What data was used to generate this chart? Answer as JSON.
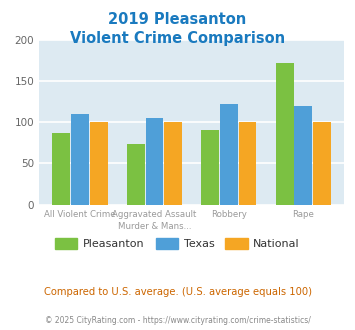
{
  "title_line1": "2019 Pleasanton",
  "title_line2": "Violent Crime Comparison",
  "title_color": "#1a7abf",
  "cat_labels_top": [
    "All Violent Crime",
    "Aggravated Assault",
    "Robbery",
    "Rape"
  ],
  "cat_labels_bot": [
    "",
    "Murder & Mans...",
    "",
    ""
  ],
  "pleasanton": [
    87,
    74,
    91,
    172
  ],
  "texas": [
    110,
    105,
    122,
    120
  ],
  "national": [
    100,
    100,
    100,
    100
  ],
  "pleasanton_color": "#7bc142",
  "texas_color": "#4f9fd8",
  "national_color": "#f5a623",
  "ylim": [
    0,
    200
  ],
  "yticks": [
    0,
    50,
    100,
    150,
    200
  ],
  "background_color": "#ddeaf2",
  "grid_color": "#ffffff",
  "annotation": "Compared to U.S. average. (U.S. average equals 100)",
  "annotation_color": "#cc6600",
  "footer": "© 2025 CityRating.com - https://www.cityrating.com/crime-statistics/",
  "footer_color": "#888888",
  "legend_labels": [
    "Pleasanton",
    "Texas",
    "National"
  ]
}
